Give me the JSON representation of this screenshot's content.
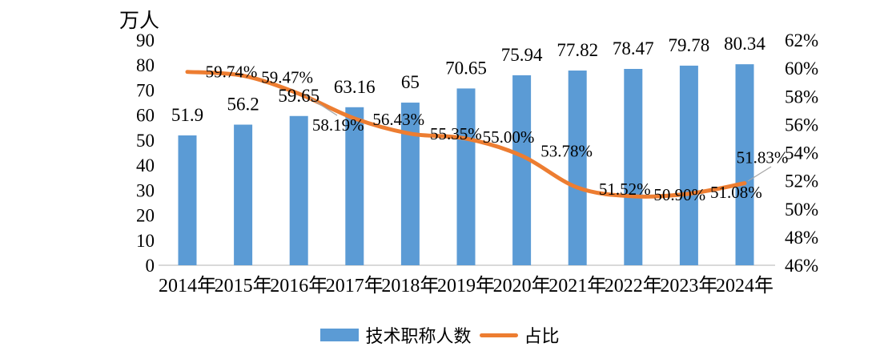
{
  "chart_data": {
    "type": "bar",
    "subtype": "combo-bar-line",
    "title": "",
    "categories": [
      "2014年",
      "2015年",
      "2016年",
      "2017年",
      "2018年",
      "2019年",
      "2020年",
      "2021年",
      "2022年",
      "2023年",
      "2024年"
    ],
    "series": [
      {
        "name": "技术职称人数",
        "type": "bar",
        "axis": "left",
        "color": "#5B9BD5",
        "values": [
          51.9,
          56.2,
          59.65,
          63.16,
          65,
          70.65,
          75.94,
          77.82,
          78.47,
          79.78,
          80.34
        ],
        "labels": [
          "51.9",
          "56.2",
          "59.65",
          "63.16",
          "65",
          "70.65",
          "75.94",
          "77.82",
          "78.47",
          "79.78",
          "80.34"
        ]
      },
      {
        "name": "占比",
        "type": "line",
        "axis": "right",
        "color": "#ED7D31",
        "values": [
          59.74,
          59.47,
          58.19,
          56.43,
          55.35,
          55.0,
          53.78,
          51.52,
          50.9,
          51.08,
          51.83
        ],
        "labels": [
          "59.74%",
          "59.47%",
          "58.19%",
          "56.43%",
          "55.35%",
          "55.00%",
          "53.78%",
          "51.52%",
          "50.90%",
          "51.08%",
          "51.83%"
        ]
      }
    ],
    "left_axis": {
      "title": "万人",
      "min": 0,
      "max": 90,
      "step": 10,
      "tick_labels": [
        "0",
        "10",
        "20",
        "30",
        "40",
        "50",
        "60",
        "70",
        "80",
        "90"
      ]
    },
    "right_axis": {
      "min": 46,
      "max": 62,
      "step": 2,
      "tick_labels": [
        "46%",
        "48%",
        "50%",
        "52%",
        "54%",
        "56%",
        "58%",
        "60%",
        "62%"
      ]
    },
    "grid": false,
    "legend_position": "bottom",
    "legend": {
      "items": [
        {
          "label": "技术职称人数",
          "swatch": "bar",
          "color": "#5B9BD5"
        },
        {
          "label": "占比",
          "swatch": "line",
          "color": "#ED7D31"
        }
      ]
    },
    "colors": {
      "baseline": "#D9D9D9",
      "leader_line": "#A6A6A6",
      "text": "#000000",
      "background": "#FFFFFF"
    }
  }
}
